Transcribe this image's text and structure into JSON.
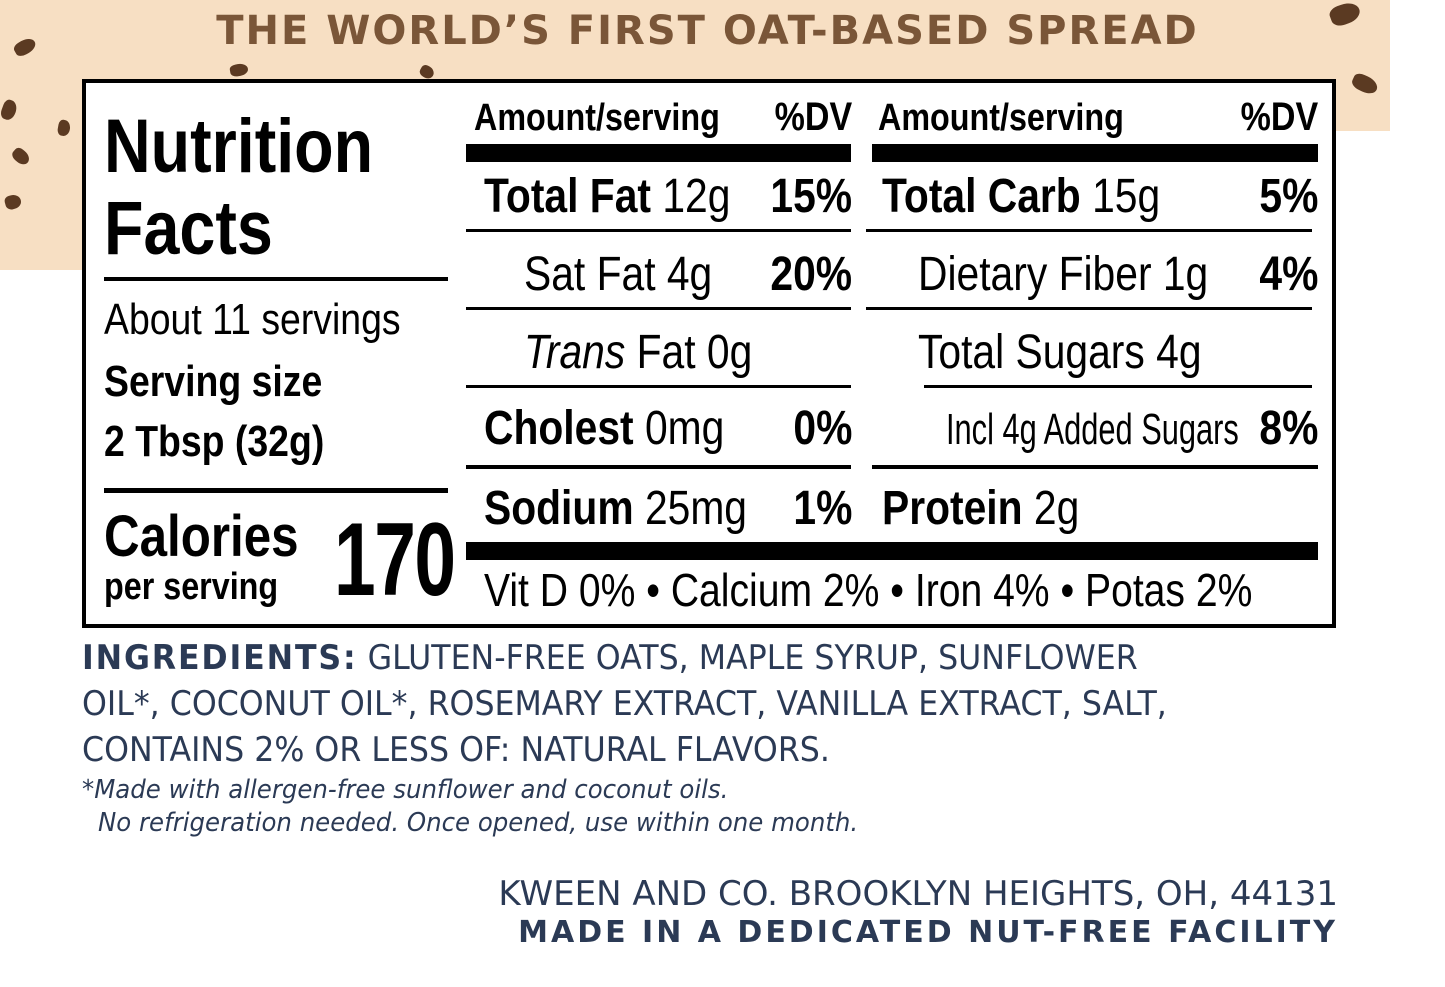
{
  "headline": "THE WORLD’S FIRST OAT-BASED SPREAD",
  "colors": {
    "beige": "#f7dfc3",
    "chip": "#5b3a22",
    "headline": "#7a5638",
    "navy": "#2b3a55"
  },
  "facts": {
    "title_line1": "Nutrition",
    "title_line2": "Facts",
    "servings": "About 11 servings",
    "serving_size_label": "Serving size",
    "serving_size_value": "2 Tbsp (32g)",
    "calories_label": "Calories",
    "per_serving": "per serving",
    "calories_value": "170",
    "header_amount": "Amount/serving",
    "header_dv": "%DV",
    "left": {
      "total_fat": {
        "name": "Total Fat",
        "amount": "12g",
        "dv": "15%"
      },
      "sat_fat": {
        "name": "Sat Fat",
        "amount": "4g",
        "dv": "20%"
      },
      "trans_fat": {
        "name": "Trans",
        "suffix": "Fat 0g"
      },
      "cholest": {
        "name": "Cholest",
        "amount": "0mg",
        "dv": "0%"
      },
      "sodium": {
        "name": "Sodium",
        "amount": "25mg",
        "dv": "1%"
      }
    },
    "right": {
      "total_carb": {
        "name": "Total Carb",
        "amount": "15g",
        "dv": "5%"
      },
      "fiber": {
        "name": "Dietary Fiber 1g",
        "dv": "4%"
      },
      "sugars": {
        "name": "Total Sugars 4g"
      },
      "added_sugars": {
        "name": "Incl 4g Added Sugars",
        "dv": "8%"
      },
      "protein": {
        "name": "Protein",
        "amount": "2g"
      }
    },
    "vitamins": "Vit D 0% • Calcium 2% • Iron 4% • Potas 2%"
  },
  "ingredients": {
    "label": "INGREDIENTS:",
    "line1": "GLUTEN-FREE OATS, MAPLE SYRUP, SUNFLOWER",
    "line2": "OIL*, COCONUT OIL*, ROSEMARY EXTRACT, VANILLA EXTRACT, SALT,",
    "line3": "CONTAINS 2% OR LESS OF: NATURAL FLAVORS."
  },
  "notes": {
    "line1": "*Made with allergen-free sunflower and coconut oils.",
    "line2": "No refrigeration needed. Once opened, use within one month."
  },
  "company": {
    "address": "KWEEN AND CO. BROOKLYN HEIGHTS, OH, 44131",
    "facility": "MADE IN A DEDICATED NUT-FREE FACILITY"
  }
}
